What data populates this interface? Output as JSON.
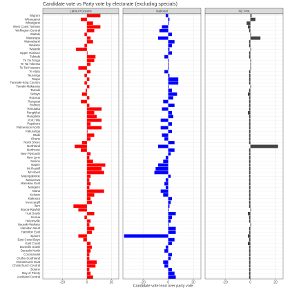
{
  "chart_data": {
    "type": "bar",
    "orientation": "horizontal",
    "title": "Candidate vote vs Party vote by electorate (excluding specials)",
    "x_label": "Candidate vote lead over party vote",
    "categories": [
      "Wigram",
      "Whanganui",
      "Whangarei",
      "West Coast Tasman",
      "Wellington Central",
      "Waitaki",
      "Wairarapa",
      "Waimakariri",
      "Waikato",
      "Waiariki",
      "Upper Harbour",
      "Tukituki",
      "Te Tai Tonga",
      "Te Tai Tokerau",
      "Te Tai Hauauru",
      "Te Atatu",
      "Tauranga",
      "Taupo",
      "Taranaki-King Country",
      "Tamaki Makaurau",
      "Tamaki",
      "Selwyn",
      "Rotorua",
      "Rongotai",
      "Rodney",
      "Rimutaka",
      "Rangitikei",
      "Rangitata",
      "Port Hills",
      "Papakura",
      "Palmerston North",
      "Pakuranga",
      "Otaki",
      "Ohariu",
      "North Shore",
      "Northland",
      "Northcote",
      "New Plymouth",
      "New Lynn",
      "Nelson",
      "Napier",
      "Mt Roskill",
      "Mt Albert",
      "Maungakiekie",
      "Manurewa",
      "Manukau East",
      "Mangere",
      "Mana",
      "Kelston",
      "Kaikoura",
      "Invercargill",
      "Ilam",
      "Ikaroa-Rawhiti",
      "Hutt South",
      "Hunua",
      "Helensville",
      "Hauraki-Waikato",
      "Hamilton West",
      "Hamilton East",
      "Epsom",
      "East Coast Bays",
      "East Coast",
      "Dunedin South",
      "Dunedin North",
      "Coromandel",
      "Clutha-Southland",
      "Christchurch East",
      "Christchurch Central",
      "Botany",
      "Bay of Plenty",
      "Auckland Central"
    ],
    "series": [
      {
        "name": "Labour+Greens",
        "color": "#ff0000",
        "values": [
          11,
          -5,
          5,
          11,
          6,
          -2,
          3,
          5,
          -2,
          -9,
          0.5,
          7,
          6,
          3,
          -7,
          3,
          -2,
          2,
          -2,
          2,
          -1,
          -4,
          2,
          -5,
          2,
          12,
          6,
          8,
          12,
          3,
          12,
          0.5,
          6,
          3,
          -4,
          -10,
          -5,
          3,
          2,
          5,
          15,
          12,
          14,
          3,
          2,
          3,
          2,
          14,
          6,
          3,
          4,
          -11,
          -7,
          6,
          -2,
          3,
          2,
          6,
          4,
          -7,
          -3,
          3,
          4,
          3,
          2,
          2,
          8,
          7,
          2,
          3,
          5
        ]
      },
      {
        "name": "National",
        "color": "#0000ff",
        "values": [
          -2,
          1,
          0.5,
          -5,
          -7,
          3,
          -8,
          5,
          3,
          1,
          3,
          -3,
          0.5,
          0.5,
          0.5,
          -3,
          1,
          8,
          8,
          0.5,
          3,
          7,
          4,
          -4,
          5,
          -5,
          3,
          4,
          -6,
          3,
          -6,
          3,
          -5,
          -3,
          5,
          -8,
          5,
          2,
          -2,
          -4,
          -8,
          -10,
          -11,
          2,
          -2,
          -3,
          -2,
          -6,
          -4,
          3,
          2,
          1,
          0.5,
          6,
          3,
          2,
          0.5,
          6,
          6,
          -35,
          5,
          3,
          -2,
          -3,
          3,
          2,
          -4,
          -3,
          3,
          5,
          6
        ]
      },
      {
        "name": "NZ First",
        "color": "#444444",
        "values": [
          1,
          4,
          -3,
          -2,
          -1,
          0.5,
          8,
          -1,
          -1,
          0.5,
          -1,
          -1,
          0.5,
          0.5,
          0.5,
          -1,
          -1,
          -1,
          -1,
          0.5,
          -1,
          -2,
          -1,
          -1,
          -1,
          -1,
          -2,
          -1,
          -1,
          -1,
          -1,
          -1,
          -1,
          -1,
          -1,
          22,
          -1,
          -1,
          -1,
          -1,
          -1,
          -1,
          -1,
          -1,
          -1,
          -1,
          -1,
          -1,
          -1,
          -1,
          -1,
          -1,
          0.5,
          -2,
          -1,
          -1,
          0.5,
          -1,
          -1,
          -2,
          -1,
          -2,
          -1,
          -1,
          -1,
          -1,
          -1,
          -1,
          -1,
          -1,
          -1
        ]
      }
    ],
    "xlim": [
      -36,
      26
    ],
    "xticks": [
      -20,
      0,
      20
    ],
    "grid": true
  }
}
